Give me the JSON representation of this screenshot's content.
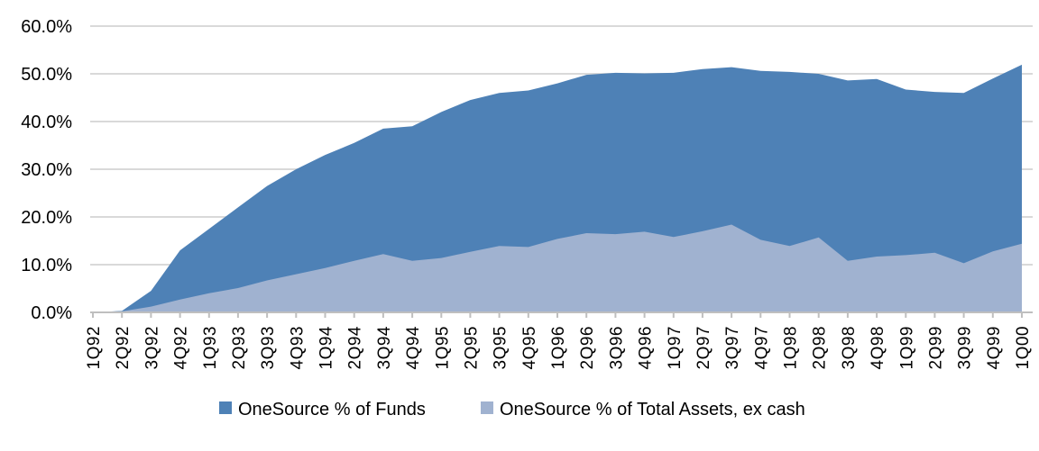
{
  "chart_data": {
    "type": "area",
    "title": "",
    "categories": [
      "1Q92",
      "2Q92",
      "3Q92",
      "4Q92",
      "1Q93",
      "2Q93",
      "3Q93",
      "4Q93",
      "1Q94",
      "2Q94",
      "3Q94",
      "4Q94",
      "1Q95",
      "2Q95",
      "3Q95",
      "4Q95",
      "1Q96",
      "2Q96",
      "3Q96",
      "4Q96",
      "1Q97",
      "2Q97",
      "3Q97",
      "4Q97",
      "1Q98",
      "2Q98",
      "3Q98",
      "4Q98",
      "1Q99",
      "2Q99",
      "3Q99",
      "4Q99",
      "1Q00"
    ],
    "series": [
      {
        "name": "OneSource % of Funds",
        "color": "#4e81b6",
        "values": [
          0.0,
          0.3,
          4.5,
          13.0,
          17.5,
          22.0,
          26.5,
          30.0,
          33.0,
          35.5,
          38.5,
          39.0,
          42.0,
          44.5,
          46.0,
          46.5,
          48.0,
          49.8,
          50.2,
          50.1,
          50.2,
          51.0,
          51.4,
          50.6,
          50.4,
          50.0,
          48.6,
          48.9,
          46.7,
          46.2,
          46.0,
          49.0,
          51.9
        ]
      },
      {
        "name": "OneSource % of Total Assets, ex cash",
        "color": "#a0b2d0",
        "values": [
          0.0,
          0.2,
          1.2,
          2.7,
          4.0,
          5.1,
          6.7,
          8.0,
          9.3,
          10.8,
          12.2,
          10.8,
          11.4,
          12.7,
          13.9,
          13.7,
          15.4,
          16.6,
          16.4,
          16.9,
          15.8,
          17.0,
          18.4,
          15.2,
          13.9,
          15.7,
          10.8,
          11.7,
          12.0,
          12.5,
          10.3,
          12.8,
          14.4
        ]
      }
    ],
    "ylim": [
      0,
      60
    ],
    "ytick_step": 10,
    "ytick_labels": [
      "0.0%",
      "10.0%",
      "20.0%",
      "30.0%",
      "40.0%",
      "50.0%",
      "60.0%"
    ],
    "grid": true,
    "legend_position": "bottom",
    "series_overlap": true,
    "colors": {
      "gridline": "#d9d9d9",
      "axis": "#bfbfbf",
      "text": "#000000",
      "background": "#ffffff"
    }
  }
}
